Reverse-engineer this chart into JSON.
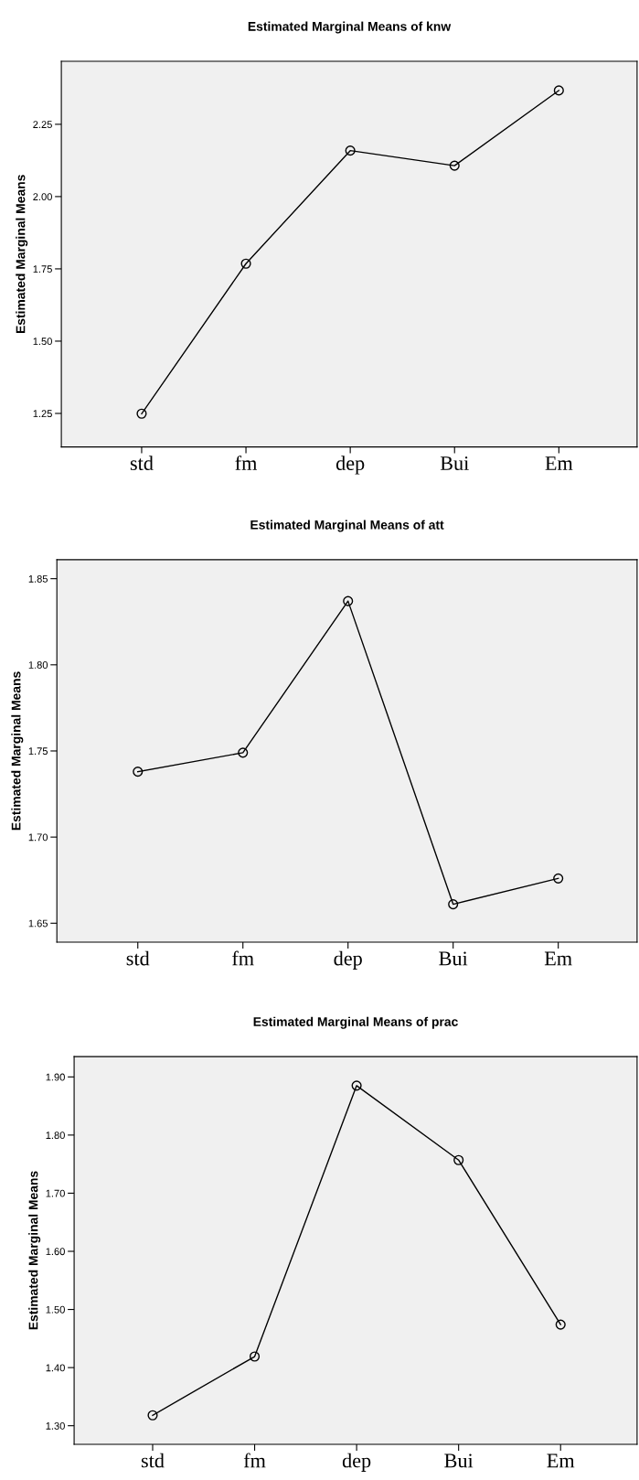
{
  "chart_data": [
    {
      "type": "line",
      "title": "Estimated Marginal Means of knw",
      "ylabel": "Estimated Marginal Means",
      "categories": [
        "std",
        "fm",
        "dep",
        "Bui",
        "Em"
      ],
      "series": [
        {
          "color": "#000000",
          "values": [
            1.249,
            1.768,
            2.159,
            2.107,
            2.367
          ]
        }
      ],
      "ylim": [
        1.134,
        2.468
      ],
      "yticks": [
        {
          "value": 1.25,
          "label": "1.25"
        },
        {
          "value": 1.5,
          "label": "1.50"
        },
        {
          "value": 1.75,
          "label": "1.75"
        },
        {
          "value": 2.0,
          "label": "2.00"
        },
        {
          "value": 2.25,
          "label": "2.25"
        }
      ],
      "grid": false,
      "marker": "circle",
      "line_style": "solid"
    },
    {
      "type": "line",
      "title": "Estimated Marginal Means of att",
      "ylabel": "Estimated Marginal Means",
      "categories": [
        "std",
        "fm",
        "dep",
        "Bui",
        "Em"
      ],
      "series": [
        {
          "color": "#000000",
          "values": [
            1.738,
            1.749,
            1.837,
            1.661,
            1.676
          ]
        }
      ],
      "ylim": [
        1.639,
        1.861
      ],
      "yticks": [
        {
          "value": 1.65,
          "label": "1.65"
        },
        {
          "value": 1.7,
          "label": "1.70"
        },
        {
          "value": 1.75,
          "label": "1.75"
        },
        {
          "value": 1.8,
          "label": "1.80"
        },
        {
          "value": 1.85,
          "label": "1.85"
        }
      ],
      "grid": false,
      "marker": "circle",
      "line_style": "solid"
    },
    {
      "type": "line",
      "title": "Estimated Marginal Means of prac",
      "ylabel": "Estimated Marginal Means",
      "categories": [
        "std",
        "fm",
        "dep",
        "Bui",
        "Em"
      ],
      "series": [
        {
          "color": "#000000",
          "values": [
            1.318,
            1.419,
            1.885,
            1.757,
            1.474
          ]
        }
      ],
      "ylim": [
        1.268,
        1.935
      ],
      "yticks": [
        {
          "value": 1.3,
          "label": "1.30"
        },
        {
          "value": 1.4,
          "label": "1.40"
        },
        {
          "value": 1.5,
          "label": "1.50"
        },
        {
          "value": 1.6,
          "label": "1.60"
        },
        {
          "value": 1.7,
          "label": "1.70"
        },
        {
          "value": 1.8,
          "label": "1.80"
        },
        {
          "value": 1.9,
          "label": "1.90"
        }
      ],
      "grid": false,
      "marker": "circle",
      "line_style": "solid"
    }
  ]
}
